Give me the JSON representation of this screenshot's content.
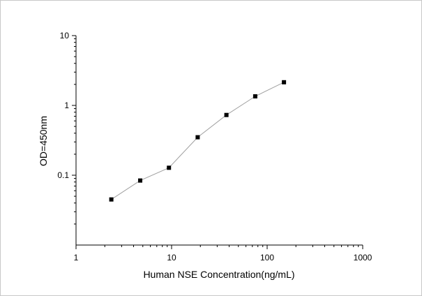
{
  "chart_data": {
    "type": "line",
    "title": "",
    "xlabel": "Human NSE Concentration(ng/mL)",
    "ylabel": "OD=450nm",
    "x_scale": "log",
    "y_scale": "log",
    "xlim": [
      1,
      1000
    ],
    "ylim": [
      0.01,
      10
    ],
    "x_ticks": [
      {
        "value": 1,
        "label": "1"
      },
      {
        "value": 10,
        "label": "10"
      },
      {
        "value": 100,
        "label": "100"
      },
      {
        "value": 1000,
        "label": "1000"
      }
    ],
    "y_ticks": [
      {
        "value": 0.1,
        "label": "0.1"
      },
      {
        "value": 1,
        "label": "1"
      },
      {
        "value": 10,
        "label": "10"
      }
    ],
    "grid": false,
    "legend": "none",
    "series": [
      {
        "x": [
          2.34,
          4.69,
          9.38,
          18.75,
          37.5,
          75,
          150
        ],
        "y": [
          0.045,
          0.084,
          0.128,
          0.35,
          0.73,
          1.35,
          2.15
        ]
      }
    ],
    "colors": {
      "line": "#a0a0a0",
      "marker": "#000000",
      "axis": "#000000"
    }
  }
}
